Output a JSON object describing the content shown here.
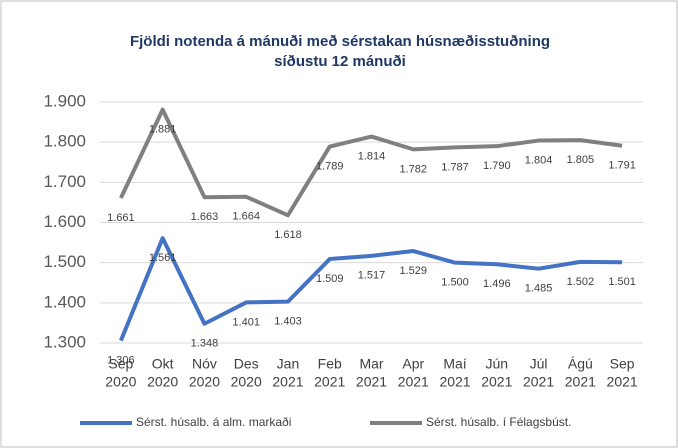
{
  "chart_data": {
    "type": "line",
    "title": [
      "Fjöldi notenda á mánuði  með sérstakan húsnæðisstuðning",
      "síðustu 12 mánuði"
    ],
    "categories": [
      [
        "Sep",
        "2020"
      ],
      [
        "Okt",
        "2020"
      ],
      [
        "Nóv",
        "2020"
      ],
      [
        "Des",
        "2020"
      ],
      [
        "Jan",
        "2021"
      ],
      [
        "Feb",
        "2021"
      ],
      [
        "Mar",
        "2021"
      ],
      [
        "Apr",
        "2021"
      ],
      [
        "Maí",
        "2021"
      ],
      [
        "Jún",
        "2021"
      ],
      [
        "Júl",
        "2021"
      ],
      [
        "Ágú",
        "2021"
      ],
      [
        "Sep",
        "2021"
      ]
    ],
    "series": [
      {
        "name": "Sérst. húsalb. á alm. markaði",
        "color": "#4472c4",
        "values": [
          1306,
          1561,
          1348,
          1401,
          1403,
          1509,
          1517,
          1529,
          1500,
          1496,
          1485,
          1502,
          1501
        ],
        "value_labels": [
          "1.306",
          "1.561",
          "1.348",
          "1.401",
          "1.403",
          "1.509",
          "1.517",
          "1.529",
          "1.500",
          "1.496",
          "1.485",
          "1.502",
          "1.501"
        ]
      },
      {
        "name": "Sérst. húsalb. í Félagsbúst.",
        "color": "#808080",
        "values": [
          1661,
          1881,
          1663,
          1664,
          1618,
          1789,
          1814,
          1782,
          1787,
          1790,
          1804,
          1805,
          1791
        ],
        "value_labels": [
          "1.661",
          "1.881",
          "1.663",
          "1.664",
          "1.618",
          "1.789",
          "1.814",
          "1.782",
          "1.787",
          "1.790",
          "1.804",
          "1.805",
          "1.791"
        ]
      }
    ],
    "ylim": [
      1300,
      1900
    ],
    "yticks": [
      {
        "value": 1300,
        "label": "1.300"
      },
      {
        "value": 1400,
        "label": "1.400"
      },
      {
        "value": 1500,
        "label": "1.500"
      },
      {
        "value": 1600,
        "label": "1.600"
      },
      {
        "value": 1700,
        "label": "1.700"
      },
      {
        "value": 1800,
        "label": "1.800"
      },
      {
        "value": 1900,
        "label": "1.900"
      }
    ],
    "grid": true,
    "legend": "bottom"
  }
}
